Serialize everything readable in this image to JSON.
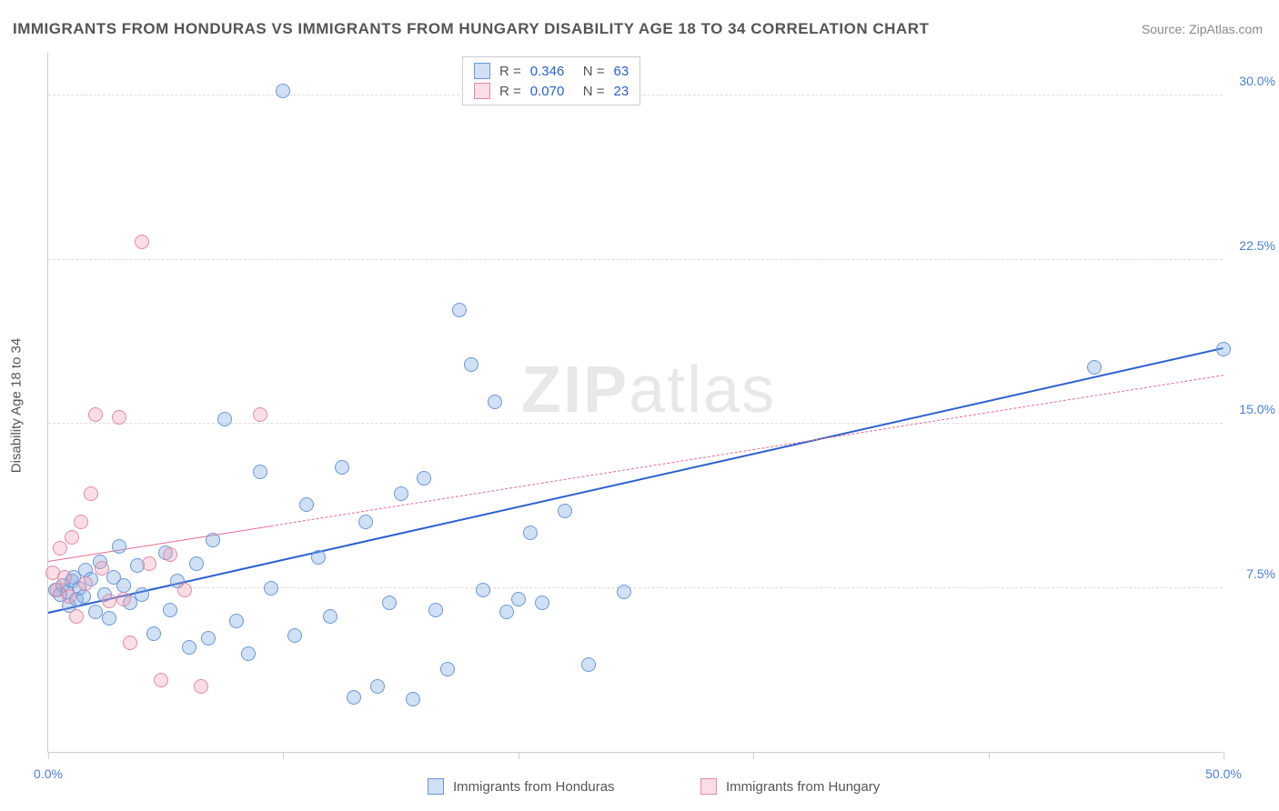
{
  "title": "IMMIGRANTS FROM HONDURAS VS IMMIGRANTS FROM HUNGARY DISABILITY AGE 18 TO 34 CORRELATION CHART",
  "source_label": "Source: ZipAtlas.com",
  "ylabel": "Disability Age 18 to 34",
  "watermark_bold": "ZIP",
  "watermark_rest": "atlas",
  "chart": {
    "type": "scatter",
    "xlim": [
      0,
      50
    ],
    "ylim": [
      0,
      32
    ],
    "xticks": [
      0,
      10,
      20,
      30,
      40,
      50
    ],
    "xtick_labels": [
      "0.0%",
      "",
      "",
      "",
      "",
      "50.0%"
    ],
    "yticks": [
      7.5,
      15.0,
      22.5,
      30.0
    ],
    "ytick_labels": [
      "7.5%",
      "15.0%",
      "22.5%",
      "30.0%"
    ],
    "grid_color": "#dddddd",
    "axis_color": "#cccccc",
    "background_color": "#ffffff",
    "marker_radius": 8,
    "marker_stroke_width": 1.2,
    "series": [
      {
        "name": "Immigrants from Honduras",
        "fill": "rgba(120,165,225,0.35)",
        "stroke": "#6a98d6",
        "R": "0.346",
        "N": "63",
        "trend": {
          "x0": 0,
          "y0": 6.3,
          "x1": 50,
          "y1": 18.4,
          "color": "#2a5fd0",
          "width": 2.5,
          "dash": "solid",
          "solid_until_x": 50
        },
        "points": [
          [
            0.3,
            7.4
          ],
          [
            0.5,
            7.2
          ],
          [
            0.6,
            7.6
          ],
          [
            0.8,
            7.3
          ],
          [
            0.9,
            6.7
          ],
          [
            1.0,
            7.8
          ],
          [
            1.1,
            8.0
          ],
          [
            1.2,
            7.0
          ],
          [
            1.3,
            7.5
          ],
          [
            1.5,
            7.1
          ],
          [
            1.6,
            8.3
          ],
          [
            1.8,
            7.9
          ],
          [
            2.0,
            6.4
          ],
          [
            2.2,
            8.7
          ],
          [
            2.4,
            7.2
          ],
          [
            2.6,
            6.1
          ],
          [
            2.8,
            8.0
          ],
          [
            3.0,
            9.4
          ],
          [
            3.2,
            7.6
          ],
          [
            3.5,
            6.8
          ],
          [
            3.8,
            8.5
          ],
          [
            4.0,
            7.2
          ],
          [
            4.5,
            5.4
          ],
          [
            5.0,
            9.1
          ],
          [
            5.2,
            6.5
          ],
          [
            5.5,
            7.8
          ],
          [
            6.0,
            4.8
          ],
          [
            6.3,
            8.6
          ],
          [
            6.8,
            5.2
          ],
          [
            7.0,
            9.7
          ],
          [
            7.5,
            15.2
          ],
          [
            8.0,
            6.0
          ],
          [
            8.5,
            4.5
          ],
          [
            9.0,
            12.8
          ],
          [
            9.5,
            7.5
          ],
          [
            10.0,
            30.2
          ],
          [
            10.5,
            5.3
          ],
          [
            11.0,
            11.3
          ],
          [
            11.5,
            8.9
          ],
          [
            12.0,
            6.2
          ],
          [
            12.5,
            13.0
          ],
          [
            13.0,
            2.5
          ],
          [
            13.5,
            10.5
          ],
          [
            14.0,
            3.0
          ],
          [
            14.5,
            6.8
          ],
          [
            15.0,
            11.8
          ],
          [
            15.5,
            2.4
          ],
          [
            16.0,
            12.5
          ],
          [
            16.5,
            6.5
          ],
          [
            17.0,
            3.8
          ],
          [
            17.5,
            20.2
          ],
          [
            18.0,
            17.7
          ],
          [
            18.5,
            7.4
          ],
          [
            19.0,
            16.0
          ],
          [
            19.5,
            6.4
          ],
          [
            20.0,
            7.0
          ],
          [
            20.5,
            10.0
          ],
          [
            21.0,
            6.8
          ],
          [
            22.0,
            11.0
          ],
          [
            23.0,
            4.0
          ],
          [
            24.5,
            7.3
          ],
          [
            44.5,
            17.6
          ],
          [
            50.0,
            18.4
          ]
        ]
      },
      {
        "name": "Immigrants from Hungary",
        "fill": "rgba(240,160,180,0.35)",
        "stroke": "#e48aa4",
        "R": "0.070",
        "N": "23",
        "trend": {
          "x0": 0,
          "y0": 8.7,
          "x1": 50,
          "y1": 17.2,
          "color": "#e66a92",
          "width": 1.6,
          "dash": "dashed",
          "solid_until_x": 9.5
        },
        "points": [
          [
            0.2,
            8.2
          ],
          [
            0.4,
            7.4
          ],
          [
            0.5,
            9.3
          ],
          [
            0.7,
            8.0
          ],
          [
            0.9,
            7.1
          ],
          [
            1.0,
            9.8
          ],
          [
            1.2,
            6.2
          ],
          [
            1.4,
            10.5
          ],
          [
            1.6,
            7.7
          ],
          [
            1.8,
            11.8
          ],
          [
            2.0,
            15.4
          ],
          [
            2.3,
            8.4
          ],
          [
            2.6,
            6.9
          ],
          [
            3.0,
            15.3
          ],
          [
            3.2,
            7.0
          ],
          [
            3.5,
            5.0
          ],
          [
            4.0,
            23.3
          ],
          [
            4.3,
            8.6
          ],
          [
            4.8,
            3.3
          ],
          [
            5.2,
            9.0
          ],
          [
            5.8,
            7.4
          ],
          [
            6.5,
            3.0
          ],
          [
            9.0,
            15.4
          ]
        ]
      }
    ]
  },
  "legend_top": {
    "rows": [
      {
        "swatch_fill": "rgba(120,165,225,0.35)",
        "swatch_stroke": "#6a98d6",
        "r_label": "R =",
        "r_val": "0.346",
        "n_label": "N =",
        "n_val": "63",
        "val_color": "#2a5fd0"
      },
      {
        "swatch_fill": "rgba(240,160,180,0.35)",
        "swatch_stroke": "#e48aa4",
        "r_label": "R =",
        "r_val": "0.070",
        "n_label": "N =",
        "n_val": "23",
        "val_color": "#2a5fd0"
      }
    ]
  },
  "legend_bottom": [
    {
      "swatch_fill": "rgba(120,165,225,0.35)",
      "swatch_stroke": "#6a98d6",
      "label": "Immigrants from Honduras"
    },
    {
      "swatch_fill": "rgba(240,160,180,0.35)",
      "swatch_stroke": "#e48aa4",
      "label": "Immigrants from Hungary"
    }
  ]
}
